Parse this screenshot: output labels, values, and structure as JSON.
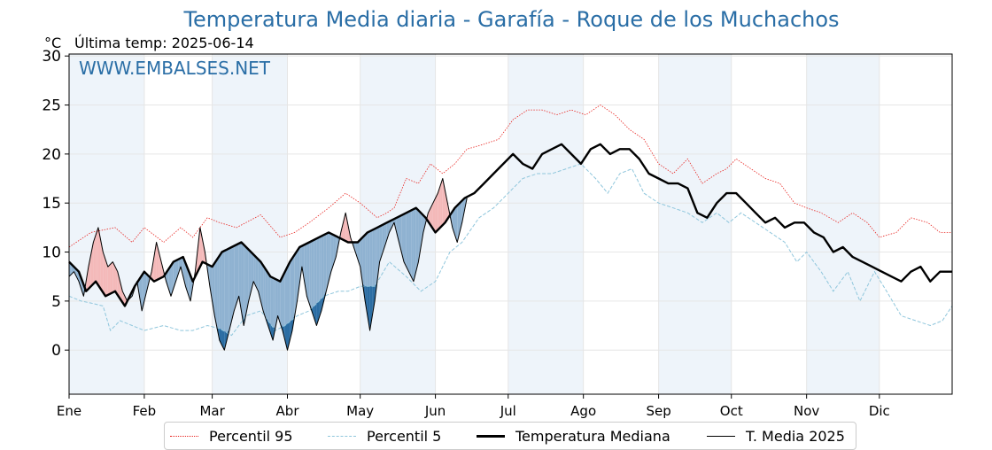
{
  "title": "Temperatura Media diaria - Garafía - Roque de los Muchachos",
  "unit_label": "°C",
  "last_temp_label": "Última temp: 2025-06-14",
  "watermark": "WWW.EMBALSES.NET",
  "colors": {
    "title": "#2a6ea6",
    "p95": "#e8231f",
    "p5": "#8fc6dc",
    "median": "#000000",
    "current": "#000000",
    "warm_light": "#f4b9b9",
    "warm_strong": "#ef7878",
    "cold_light": "#8fb2d1",
    "cold_strong": "#2b6da3",
    "winter_band": "#eef4fa"
  },
  "chart_data": {
    "type": "line",
    "x_axis": "day of year (1-365)",
    "month_labels": [
      "Ene",
      "Feb",
      "Mar",
      "Abr",
      "May",
      "Jun",
      "Jul",
      "Ago",
      "Sep",
      "Oct",
      "Nov",
      "Dic"
    ],
    "month_start_days": [
      1,
      32,
      60,
      91,
      121,
      152,
      182,
      213,
      244,
      274,
      305,
      335
    ],
    "shaded_months": [
      "Ene",
      "Mar",
      "May",
      "Jul",
      "Sep",
      "Nov"
    ],
    "yticks": [
      0,
      5,
      10,
      15,
      20,
      25,
      30
    ],
    "ylim": [
      -4.5,
      30.2
    ],
    "xlim": [
      1,
      365
    ],
    "grid": true,
    "series": [
      {
        "name": "Percentil 95",
        "style": "dotted-red",
        "points": [
          [
            1,
            10.5
          ],
          [
            10,
            12
          ],
          [
            20,
            12.5
          ],
          [
            27,
            11
          ],
          [
            32,
            12.5
          ],
          [
            40,
            11
          ],
          [
            47,
            12.5
          ],
          [
            52,
            11.5
          ],
          [
            58,
            13.5
          ],
          [
            63,
            13
          ],
          [
            70,
            12.5
          ],
          [
            80,
            13.8
          ],
          [
            88,
            11.5
          ],
          [
            94,
            12
          ],
          [
            100,
            13
          ],
          [
            108,
            14.5
          ],
          [
            115,
            16
          ],
          [
            121,
            15
          ],
          [
            128,
            13.5
          ],
          [
            132,
            14
          ],
          [
            135,
            14.5
          ],
          [
            140,
            17.5
          ],
          [
            145,
            17
          ],
          [
            150,
            19
          ],
          [
            155,
            18
          ],
          [
            160,
            19
          ],
          [
            165,
            20.5
          ],
          [
            172,
            21
          ],
          [
            178,
            21.5
          ],
          [
            184,
            23.5
          ],
          [
            190,
            24.5
          ],
          [
            196,
            24.5
          ],
          [
            202,
            24
          ],
          [
            208,
            24.5
          ],
          [
            214,
            24
          ],
          [
            220,
            25
          ],
          [
            226,
            24
          ],
          [
            232,
            22.5
          ],
          [
            238,
            21.5
          ],
          [
            244,
            19
          ],
          [
            250,
            18
          ],
          [
            256,
            19.5
          ],
          [
            262,
            17
          ],
          [
            268,
            18
          ],
          [
            272,
            18.5
          ],
          [
            276,
            19.5
          ],
          [
            282,
            18.5
          ],
          [
            288,
            17.5
          ],
          [
            294,
            17
          ],
          [
            300,
            15
          ],
          [
            305,
            14.5
          ],
          [
            311,
            14
          ],
          [
            318,
            13
          ],
          [
            324,
            14
          ],
          [
            330,
            13
          ],
          [
            335,
            11.5
          ],
          [
            342,
            12
          ],
          [
            348,
            13.5
          ],
          [
            355,
            13
          ],
          [
            360,
            12
          ],
          [
            365,
            12
          ]
        ]
      },
      {
        "name": "Percentil 5",
        "style": "dashed-lightblue",
        "points": [
          [
            1,
            5.5
          ],
          [
            6,
            5
          ],
          [
            10,
            4.8
          ],
          [
            15,
            4.5
          ],
          [
            18,
            2
          ],
          [
            22,
            3
          ],
          [
            27,
            2.5
          ],
          [
            32,
            2
          ],
          [
            40,
            2.5
          ],
          [
            47,
            2
          ],
          [
            52,
            2
          ],
          [
            58,
            2.5
          ],
          [
            63,
            2.2
          ],
          [
            68,
            1.5
          ],
          [
            74,
            3.5
          ],
          [
            80,
            4
          ],
          [
            86,
            2
          ],
          [
            90,
            2.5
          ],
          [
            95,
            3.5
          ],
          [
            100,
            4
          ],
          [
            106,
            5.5
          ],
          [
            112,
            6
          ],
          [
            116,
            6
          ],
          [
            121,
            6.5
          ],
          [
            127,
            6.5
          ],
          [
            133,
            9
          ],
          [
            140,
            7.5
          ],
          [
            146,
            6
          ],
          [
            152,
            7
          ],
          [
            158,
            10
          ],
          [
            163,
            11
          ],
          [
            170,
            13.5
          ],
          [
            176,
            14.5
          ],
          [
            182,
            16
          ],
          [
            188,
            17.5
          ],
          [
            194,
            18
          ],
          [
            200,
            18
          ],
          [
            206,
            18.5
          ],
          [
            212,
            19
          ],
          [
            218,
            17.5
          ],
          [
            223,
            16
          ],
          [
            228,
            18
          ],
          [
            233,
            18.5
          ],
          [
            238,
            16
          ],
          [
            244,
            15
          ],
          [
            250,
            14.5
          ],
          [
            256,
            14
          ],
          [
            262,
            13
          ],
          [
            268,
            14
          ],
          [
            273,
            13
          ],
          [
            278,
            14
          ],
          [
            284,
            13
          ],
          [
            290,
            12
          ],
          [
            296,
            11
          ],
          [
            301,
            9
          ],
          [
            305,
            10
          ],
          [
            311,
            8
          ],
          [
            316,
            6
          ],
          [
            322,
            8
          ],
          [
            327,
            5
          ],
          [
            333,
            8
          ],
          [
            338,
            6
          ],
          [
            344,
            3.5
          ],
          [
            350,
            3
          ],
          [
            356,
            2.5
          ],
          [
            361,
            3
          ],
          [
            365,
            4.5
          ]
        ]
      },
      {
        "name": "Temperatura Mediana",
        "style": "thick-black",
        "points": [
          [
            1,
            9
          ],
          [
            5,
            8
          ],
          [
            8,
            6
          ],
          [
            12,
            7
          ],
          [
            16,
            5.5
          ],
          [
            20,
            6
          ],
          [
            24,
            4.5
          ],
          [
            28,
            6.5
          ],
          [
            32,
            8
          ],
          [
            36,
            7
          ],
          [
            40,
            7.5
          ],
          [
            44,
            9
          ],
          [
            48,
            9.5
          ],
          [
            52,
            7
          ],
          [
            56,
            9
          ],
          [
            60,
            8.5
          ],
          [
            64,
            10
          ],
          [
            68,
            10.5
          ],
          [
            72,
            11
          ],
          [
            76,
            10
          ],
          [
            80,
            9
          ],
          [
            84,
            7.5
          ],
          [
            88,
            7
          ],
          [
            92,
            9
          ],
          [
            96,
            10.5
          ],
          [
            100,
            11
          ],
          [
            104,
            11.5
          ],
          [
            108,
            12
          ],
          [
            112,
            11.5
          ],
          [
            116,
            11
          ],
          [
            120,
            11
          ],
          [
            124,
            12
          ],
          [
            128,
            12.5
          ],
          [
            132,
            13
          ],
          [
            136,
            13.5
          ],
          [
            140,
            14
          ],
          [
            144,
            14.5
          ],
          [
            148,
            13.5
          ],
          [
            152,
            12
          ],
          [
            156,
            13
          ],
          [
            160,
            14.5
          ],
          [
            164,
            15.5
          ],
          [
            168,
            16
          ],
          [
            172,
            17
          ],
          [
            176,
            18
          ],
          [
            180,
            19
          ],
          [
            184,
            20
          ],
          [
            188,
            19
          ],
          [
            192,
            18.5
          ],
          [
            196,
            20
          ],
          [
            200,
            20.5
          ],
          [
            204,
            21
          ],
          [
            208,
            20
          ],
          [
            212,
            19
          ],
          [
            216,
            20.5
          ],
          [
            220,
            21
          ],
          [
            224,
            20
          ],
          [
            228,
            20.5
          ],
          [
            232,
            20.5
          ],
          [
            236,
            19.5
          ],
          [
            240,
            18
          ],
          [
            244,
            17.5
          ],
          [
            248,
            17
          ],
          [
            252,
            17
          ],
          [
            256,
            16.5
          ],
          [
            260,
            14
          ],
          [
            264,
            13.5
          ],
          [
            268,
            15
          ],
          [
            272,
            16
          ],
          [
            276,
            16
          ],
          [
            280,
            15
          ],
          [
            284,
            14
          ],
          [
            288,
            13
          ],
          [
            292,
            13.5
          ],
          [
            296,
            12.5
          ],
          [
            300,
            13
          ],
          [
            304,
            13
          ],
          [
            308,
            12
          ],
          [
            312,
            11.5
          ],
          [
            316,
            10
          ],
          [
            320,
            10.5
          ],
          [
            324,
            9.5
          ],
          [
            328,
            9
          ],
          [
            332,
            8.5
          ],
          [
            336,
            8
          ],
          [
            340,
            7.5
          ],
          [
            344,
            7
          ],
          [
            348,
            8
          ],
          [
            352,
            8.5
          ],
          [
            356,
            7
          ],
          [
            360,
            8
          ],
          [
            365,
            8
          ]
        ]
      },
      {
        "name": "T. Media 2025",
        "style": "thin-black-filled",
        "points": [
          [
            1,
            7.5
          ],
          [
            3,
            8
          ],
          [
            5,
            7
          ],
          [
            7,
            5.5
          ],
          [
            9,
            8.5
          ],
          [
            11,
            11
          ],
          [
            13,
            12.5
          ],
          [
            15,
            10
          ],
          [
            17,
            8.5
          ],
          [
            19,
            9
          ],
          [
            21,
            8
          ],
          [
            23,
            6
          ],
          [
            25,
            5
          ],
          [
            27,
            5.5
          ],
          [
            29,
            7
          ],
          [
            31,
            4
          ],
          [
            33,
            6
          ],
          [
            35,
            8
          ],
          [
            37,
            11
          ],
          [
            39,
            9
          ],
          [
            41,
            7
          ],
          [
            43,
            5.5
          ],
          [
            45,
            7
          ],
          [
            47,
            8.5
          ],
          [
            49,
            6.5
          ],
          [
            51,
            5
          ],
          [
            53,
            8
          ],
          [
            55,
            12.5
          ],
          [
            57,
            10
          ],
          [
            59,
            6.5
          ],
          [
            61,
            3.5
          ],
          [
            63,
            1
          ],
          [
            65,
            0
          ],
          [
            67,
            2
          ],
          [
            69,
            4
          ],
          [
            71,
            5.5
          ],
          [
            73,
            2.5
          ],
          [
            75,
            5
          ],
          [
            77,
            7
          ],
          [
            79,
            6
          ],
          [
            81,
            4
          ],
          [
            83,
            2.5
          ],
          [
            85,
            1
          ],
          [
            87,
            3.5
          ],
          [
            89,
            2
          ],
          [
            91,
            0
          ],
          [
            93,
            2
          ],
          [
            95,
            5
          ],
          [
            97,
            8.5
          ],
          [
            99,
            5.5
          ],
          [
            101,
            4
          ],
          [
            103,
            2.5
          ],
          [
            105,
            4
          ],
          [
            107,
            6
          ],
          [
            109,
            8
          ],
          [
            111,
            9.5
          ],
          [
            113,
            12
          ],
          [
            115,
            14
          ],
          [
            117,
            11.5
          ],
          [
            119,
            10
          ],
          [
            121,
            8.5
          ],
          [
            123,
            5
          ],
          [
            125,
            2
          ],
          [
            127,
            5
          ],
          [
            129,
            9
          ],
          [
            131,
            10.5
          ],
          [
            133,
            12
          ],
          [
            135,
            13
          ],
          [
            137,
            11
          ],
          [
            139,
            9
          ],
          [
            141,
            8
          ],
          [
            143,
            7
          ],
          [
            145,
            9
          ],
          [
            147,
            12
          ],
          [
            149,
            14
          ],
          [
            151,
            15
          ],
          [
            153,
            16
          ],
          [
            155,
            17.5
          ],
          [
            157,
            15
          ],
          [
            159,
            12.5
          ],
          [
            161,
            11
          ],
          [
            163,
            13
          ],
          [
            165,
            15.5
          ]
        ]
      }
    ]
  }
}
